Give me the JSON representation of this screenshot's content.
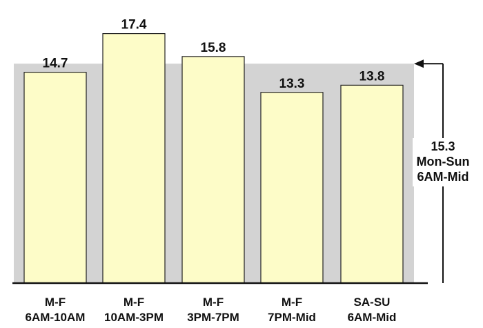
{
  "chart_data": {
    "type": "bar",
    "categories": [
      [
        "M-F",
        "6AM-10AM"
      ],
      [
        "M-F",
        "10AM-3PM"
      ],
      [
        "M-F",
        "3PM-7PM"
      ],
      [
        "M-F",
        "7PM-Mid"
      ],
      [
        "SA-SU",
        "6AM-Mid"
      ]
    ],
    "values": [
      14.7,
      17.4,
      15.8,
      13.3,
      13.8
    ],
    "value_labels": [
      "14.7",
      "17.4",
      "15.8",
      "13.3",
      "13.8"
    ],
    "ylim": [
      0,
      18.2
    ],
    "grid": false,
    "reference": {
      "value": 15.3,
      "label_lines": [
        "15.3",
        "Mon-Sun",
        "6AM-Mid"
      ]
    },
    "colors": {
      "bar_fill": "#fdfcc8",
      "bar_stroke": "#222222",
      "reference_band": "#d3d3d3",
      "axis": "#111111"
    }
  }
}
